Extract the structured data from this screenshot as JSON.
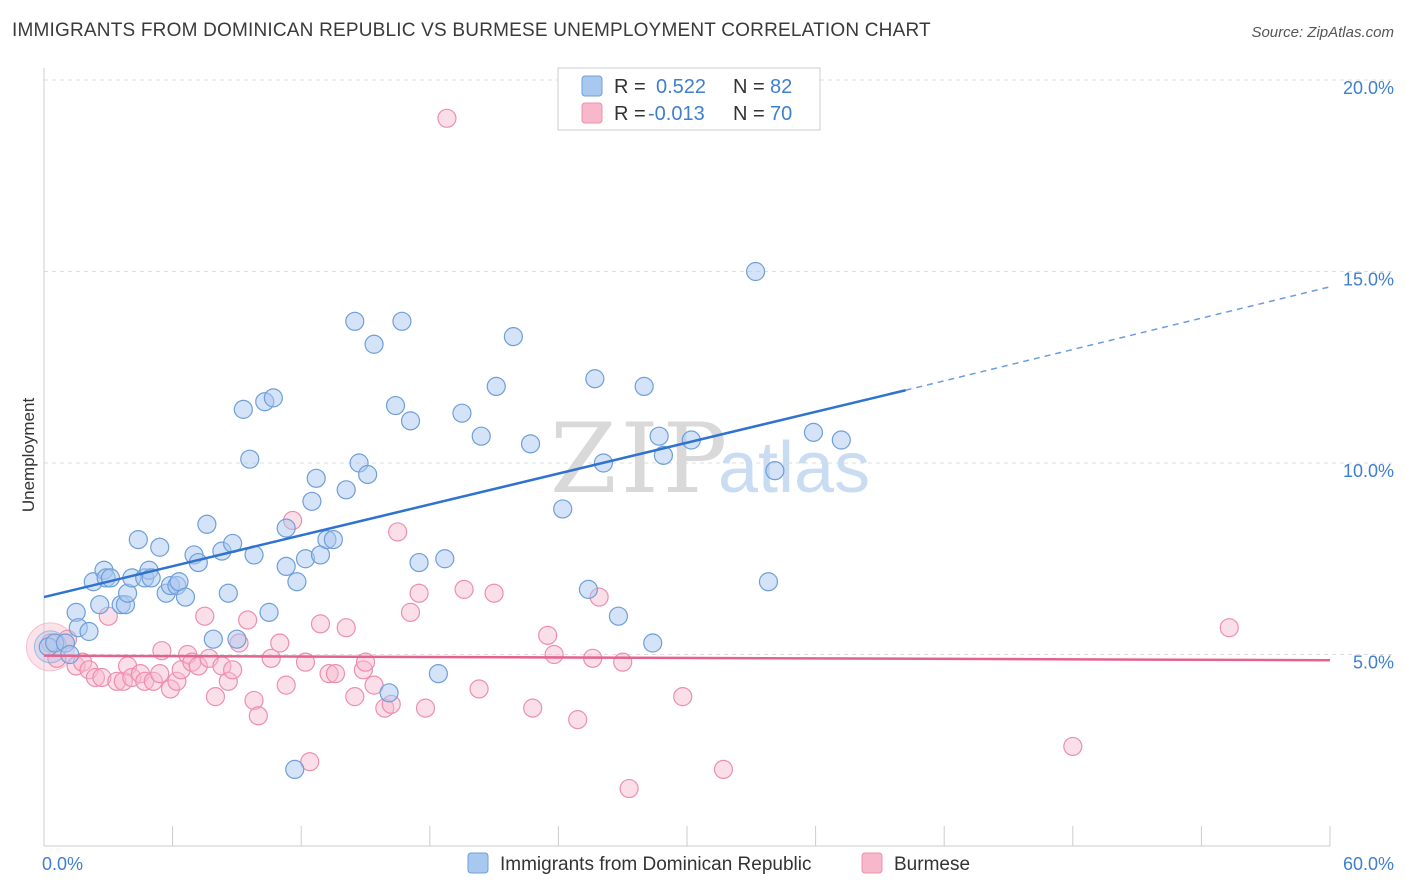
{
  "title": "IMMIGRANTS FROM DOMINICAN REPUBLIC VS BURMESE UNEMPLOYMENT CORRELATION CHART",
  "source": "Source: ZipAtlas.com",
  "watermark": {
    "zip": "ZIP",
    "atlas": "atlas"
  },
  "colors": {
    "blue_fill": "#a9c8f0",
    "blue_stroke": "#6f9fd8",
    "blue_line": "#2f72d0",
    "pink_fill": "#f7b8cb",
    "pink_stroke": "#ec8fae",
    "pink_line": "#e4628e",
    "grid": "#dddddd",
    "axis_text": "#3f7fd0"
  },
  "legend_box": {
    "rows": [
      {
        "r_label": "R =",
        "r_value": "0.522",
        "n_label": "N =",
        "n_value": "82",
        "series": "blue"
      },
      {
        "r_label": "R =",
        "r_value": "-0.013",
        "n_label": "N =",
        "n_value": "70",
        "series": "pink"
      }
    ]
  },
  "chart_data": {
    "type": "scatter",
    "title": "IMMIGRANTS FROM DOMINICAN REPUBLIC VS BURMESE UNEMPLOYMENT CORRELATION CHART",
    "xlabel": "",
    "ylabel": "Unemployment",
    "xlim": [
      0,
      60
    ],
    "ylim": [
      0,
      20
    ],
    "x_tick_labels": [
      "0.0%",
      "60.0%"
    ],
    "y_ticks": [
      5,
      10,
      15,
      20
    ],
    "y_tick_labels": [
      "5.0%",
      "10.0%",
      "15.0%",
      "20.0%"
    ],
    "grid": true,
    "legend_position": "bottom",
    "series": [
      {
        "name": "Immigrants from Dominican Republic",
        "color": "blue",
        "trend": {
          "x0": 0,
          "y0": 6.5,
          "x1": 40.2,
          "y1": 11.9,
          "dash_to_x": 60,
          "dash_to_y": 14.6
        },
        "points": [
          [
            0.2,
            5.2
          ],
          [
            0.5,
            5.3
          ],
          [
            1.0,
            5.3
          ],
          [
            1.2,
            5.0
          ],
          [
            1.5,
            6.1
          ],
          [
            1.6,
            5.7
          ],
          [
            2.1,
            5.6
          ],
          [
            2.3,
            6.9
          ],
          [
            2.6,
            6.3
          ],
          [
            2.8,
            7.2
          ],
          [
            2.9,
            7.0
          ],
          [
            3.1,
            7.0
          ],
          [
            3.6,
            6.3
          ],
          [
            3.8,
            6.3
          ],
          [
            3.9,
            6.6
          ],
          [
            4.1,
            7.0
          ],
          [
            4.4,
            8.0
          ],
          [
            4.7,
            7.0
          ],
          [
            4.9,
            7.2
          ],
          [
            5.0,
            7.0
          ],
          [
            5.4,
            7.8
          ],
          [
            5.7,
            6.6
          ],
          [
            5.9,
            6.8
          ],
          [
            6.2,
            6.8
          ],
          [
            6.3,
            6.9
          ],
          [
            6.6,
            6.5
          ],
          [
            7.0,
            7.6
          ],
          [
            7.2,
            7.4
          ],
          [
            7.6,
            8.4
          ],
          [
            7.9,
            5.4
          ],
          [
            8.3,
            7.7
          ],
          [
            8.6,
            6.6
          ],
          [
            8.8,
            7.9
          ],
          [
            9.0,
            5.4
          ],
          [
            9.3,
            11.4
          ],
          [
            9.6,
            10.1
          ],
          [
            9.8,
            7.6
          ],
          [
            10.3,
            11.6
          ],
          [
            10.5,
            6.1
          ],
          [
            10.7,
            11.7
          ],
          [
            11.3,
            8.3
          ],
          [
            11.3,
            7.3
          ],
          [
            11.7,
            2.0
          ],
          [
            11.8,
            6.9
          ],
          [
            12.2,
            7.5
          ],
          [
            12.5,
            9.0
          ],
          [
            12.7,
            9.6
          ],
          [
            12.9,
            7.6
          ],
          [
            13.2,
            8.0
          ],
          [
            13.5,
            8.0
          ],
          [
            14.1,
            9.3
          ],
          [
            14.5,
            13.7
          ],
          [
            14.7,
            10.0
          ],
          [
            15.1,
            9.7
          ],
          [
            15.4,
            13.1
          ],
          [
            16.1,
            4.0
          ],
          [
            16.4,
            11.5
          ],
          [
            16.7,
            13.7
          ],
          [
            17.1,
            11.1
          ],
          [
            17.5,
            7.4
          ],
          [
            18.4,
            4.5
          ],
          [
            18.7,
            7.5
          ],
          [
            19.5,
            11.3
          ],
          [
            20.4,
            10.7
          ],
          [
            21.1,
            12.0
          ],
          [
            21.9,
            13.3
          ],
          [
            22.7,
            10.5
          ],
          [
            24.2,
            8.8
          ],
          [
            25.4,
            6.7
          ],
          [
            25.7,
            12.2
          ],
          [
            26.1,
            10.0
          ],
          [
            26.8,
            6.0
          ],
          [
            28.0,
            12.0
          ],
          [
            28.4,
            5.3
          ],
          [
            28.7,
            10.7
          ],
          [
            28.9,
            10.2
          ],
          [
            30.2,
            10.6
          ],
          [
            33.2,
            15.0
          ],
          [
            33.8,
            6.9
          ],
          [
            34.1,
            9.8
          ],
          [
            35.9,
            10.8
          ],
          [
            37.2,
            10.6
          ]
        ]
      },
      {
        "name": "Burmese",
        "color": "pink",
        "trend": {
          "x0": 0,
          "y0": 4.97,
          "x1": 60,
          "y1": 4.85
        },
        "points": [
          [
            0.3,
            5.3
          ],
          [
            0.6,
            4.9
          ],
          [
            1.1,
            5.4
          ],
          [
            1.5,
            4.7
          ],
          [
            1.8,
            4.8
          ],
          [
            2.1,
            4.6
          ],
          [
            2.4,
            4.4
          ],
          [
            2.7,
            4.4
          ],
          [
            3.0,
            6.0
          ],
          [
            3.4,
            4.3
          ],
          [
            3.7,
            4.3
          ],
          [
            3.9,
            4.7
          ],
          [
            4.1,
            4.4
          ],
          [
            4.5,
            4.5
          ],
          [
            4.7,
            4.3
          ],
          [
            5.1,
            4.3
          ],
          [
            5.4,
            4.5
          ],
          [
            5.5,
            5.1
          ],
          [
            5.9,
            4.1
          ],
          [
            6.2,
            4.3
          ],
          [
            6.4,
            4.6
          ],
          [
            6.7,
            5.0
          ],
          [
            6.9,
            4.8
          ],
          [
            7.2,
            4.7
          ],
          [
            7.5,
            6.0
          ],
          [
            7.7,
            4.9
          ],
          [
            8.0,
            3.9
          ],
          [
            8.3,
            4.7
          ],
          [
            8.6,
            4.3
          ],
          [
            8.8,
            4.6
          ],
          [
            9.1,
            5.3
          ],
          [
            9.5,
            5.9
          ],
          [
            9.8,
            3.8
          ],
          [
            10.0,
            3.4
          ],
          [
            10.6,
            4.9
          ],
          [
            11.0,
            5.3
          ],
          [
            11.3,
            4.2
          ],
          [
            11.6,
            8.5
          ],
          [
            12.2,
            4.8
          ],
          [
            12.4,
            2.2
          ],
          [
            12.9,
            5.8
          ],
          [
            13.3,
            4.5
          ],
          [
            13.6,
            4.5
          ],
          [
            14.1,
            5.7
          ],
          [
            14.5,
            3.9
          ],
          [
            14.9,
            4.6
          ],
          [
            15.0,
            4.8
          ],
          [
            15.4,
            4.2
          ],
          [
            15.9,
            3.6
          ],
          [
            16.2,
            3.7
          ],
          [
            16.5,
            8.2
          ],
          [
            17.1,
            6.1
          ],
          [
            17.5,
            6.6
          ],
          [
            17.8,
            3.6
          ],
          [
            18.8,
            19.0
          ],
          [
            19.6,
            6.7
          ],
          [
            20.3,
            4.1
          ],
          [
            21.0,
            6.6
          ],
          [
            22.8,
            3.6
          ],
          [
            23.5,
            5.5
          ],
          [
            23.8,
            5.0
          ],
          [
            24.9,
            3.3
          ],
          [
            25.6,
            4.9
          ],
          [
            25.9,
            6.5
          ],
          [
            27.0,
            4.8
          ],
          [
            27.3,
            1.5
          ],
          [
            29.8,
            3.9
          ],
          [
            31.7,
            2.0
          ],
          [
            48.0,
            2.6
          ],
          [
            55.3,
            5.7
          ]
        ]
      }
    ]
  }
}
